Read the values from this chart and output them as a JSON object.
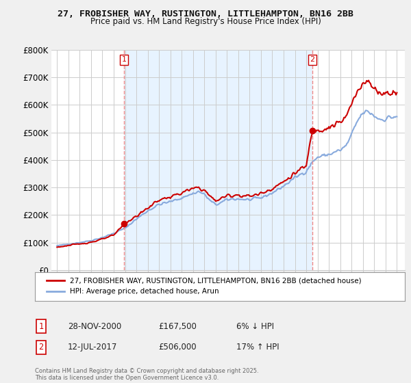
{
  "title_line1": "27, FROBISHER WAY, RUSTINGTON, LITTLEHAMPTON, BN16 2BB",
  "title_line2": "Price paid vs. HM Land Registry's House Price Index (HPI)",
  "bg_color": "#f0f0f0",
  "plot_bg_color": "#ffffff",
  "shaded_bg_color": "#ddeeff",
  "grid_color": "#cccccc",
  "line1_color": "#cc0000",
  "line2_color": "#88aadd",
  "vline_color": "#ee8888",
  "annotation_box_color": "#cc0000",
  "ylim": [
    0,
    800000
  ],
  "yticks": [
    0,
    100000,
    200000,
    300000,
    400000,
    500000,
    600000,
    700000,
    800000
  ],
  "ytick_labels": [
    "£0",
    "£100K",
    "£200K",
    "£300K",
    "£400K",
    "£500K",
    "£600K",
    "£700K",
    "£800K"
  ],
  "sale1_year": 2000.91,
  "sale1_price": 167500,
  "sale2_year": 2017.53,
  "sale2_price": 506000,
  "sale1_label": "1",
  "sale2_label": "2",
  "legend_line1": "27, FROBISHER WAY, RUSTINGTON, LITTLEHAMPTON, BN16 2BB (detached house)",
  "legend_line2": "HPI: Average price, detached house, Arun",
  "copyright_text": "Contains HM Land Registry data © Crown copyright and database right 2025.\nThis data is licensed under the Open Government Licence v3.0."
}
